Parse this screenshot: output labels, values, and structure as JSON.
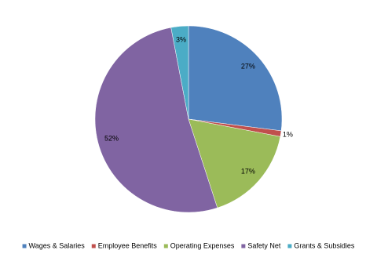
{
  "chart_data": {
    "type": "pie",
    "categories": [
      "Wages & Salaries",
      "Employee Benefits",
      "Operating Expenses",
      "Safety Net",
      "Grants & Subsidies"
    ],
    "values": [
      27,
      1,
      17,
      52,
      3
    ],
    "value_labels": [
      "27%",
      "1%",
      "17%",
      "52%",
      "3%"
    ],
    "colors": [
      "#4f81bd",
      "#c0504d",
      "#9bbb59",
      "#8064a2",
      "#4bacc6"
    ],
    "legend": "bottom"
  }
}
